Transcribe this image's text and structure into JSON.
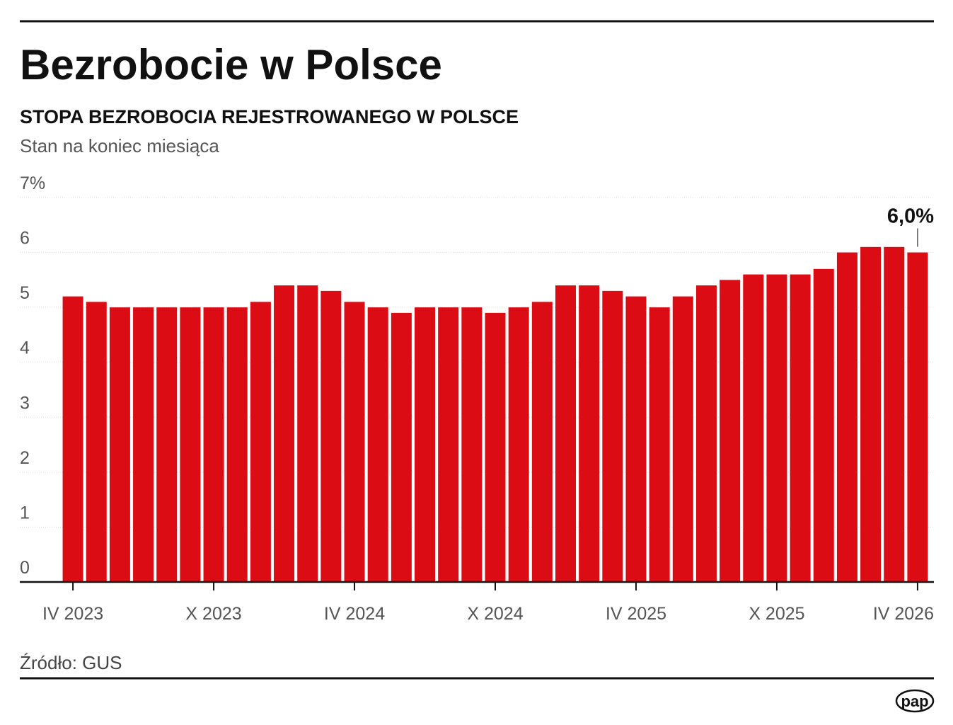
{
  "chart_data": {
    "type": "bar",
    "title": "Bezrobocie w Polsce",
    "subtitle": "STOPA BEZROBOCIA REJESTROWANEGO W POLSCE",
    "note": "Stan na koniec miesiąca",
    "source": "Źródło: GUS",
    "logo": "pap",
    "categories": [
      "IV 2023",
      null,
      null,
      null,
      null,
      null,
      "X 2023",
      null,
      null,
      null,
      null,
      null,
      "IV 2024",
      null,
      null,
      null,
      null,
      null,
      "X 2024",
      null,
      null,
      null,
      null,
      null,
      "IV 2025",
      null,
      null,
      null,
      null,
      null,
      "X 2025",
      null,
      null,
      null,
      null,
      null,
      "IV 2026"
    ],
    "values": [
      5.2,
      5.1,
      5.0,
      5.0,
      5.0,
      5.0,
      5.0,
      5.0,
      5.1,
      5.4,
      5.4,
      5.3,
      5.1,
      5.0,
      4.9,
      5.0,
      5.0,
      5.0,
      4.9,
      5.0,
      5.1,
      5.4,
      5.4,
      5.3,
      5.2,
      5.0,
      5.2,
      5.4,
      5.5,
      5.6,
      5.6,
      5.6,
      5.7,
      6.0,
      6.1,
      6.1,
      6.0
    ],
    "value_labels": [
      null,
      null,
      null,
      null,
      null,
      null,
      null,
      null,
      null,
      null,
      null,
      null,
      null,
      null,
      null,
      null,
      null,
      null,
      null,
      null,
      null,
      null,
      null,
      null,
      null,
      null,
      null,
      null,
      null,
      null,
      null,
      null,
      null,
      null,
      null,
      null,
      "6,0%"
    ],
    "color": "#dc0c15",
    "ylim": [
      0,
      7
    ],
    "yticks": [
      0,
      1,
      2,
      3,
      4,
      5,
      6,
      {
        "value": 7,
        "label": "7%"
      }
    ],
    "grid": true
  }
}
